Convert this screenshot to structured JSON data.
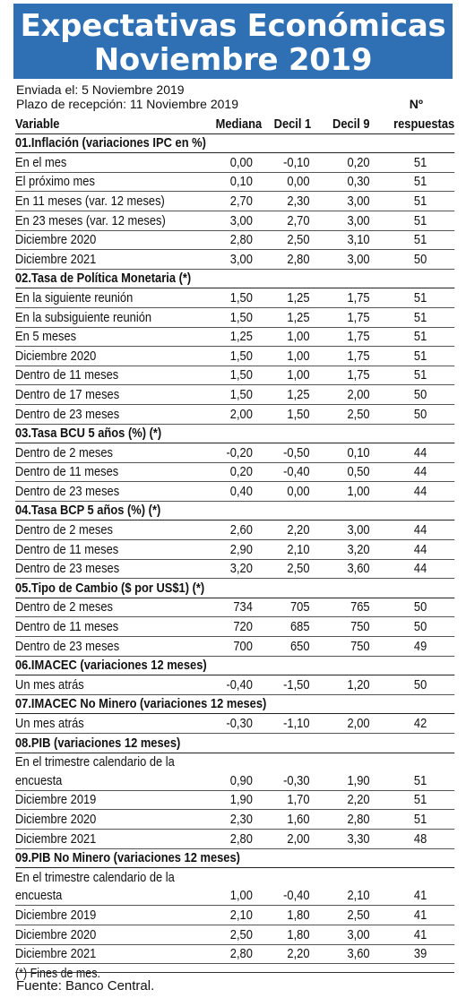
{
  "title_line1": "Expectativas Económicas",
  "title_line2": "Noviembre 2019",
  "sent": "Enviada el: 5 Noviembre 2019",
  "deadline": "Plazo de recepción: 11 Noviembre 2019",
  "columns": [
    "Variable",
    "Mediana",
    "Decil 1",
    "Decil 9",
    "respuestas"
  ],
  "n_label": "Nº",
  "rows": [
    {
      "t": "sec",
      "label": "01.Inflación (variaciones IPC en %)"
    },
    {
      "t": "item",
      "label": "En el mes",
      "v": [
        "0,00",
        "-0,10",
        "0,20",
        "51"
      ]
    },
    {
      "t": "item",
      "label": "El próximo mes",
      "v": [
        "0,10",
        "0,00",
        "0,30",
        "51"
      ]
    },
    {
      "t": "item",
      "label": "En 11 meses (var. 12 meses)",
      "v": [
        "2,70",
        "2,30",
        "3,00",
        "51"
      ]
    },
    {
      "t": "item",
      "label": "En 23 meses (var. 12 meses)",
      "v": [
        "3,00",
        "2,70",
        "3,00",
        "51"
      ]
    },
    {
      "t": "item",
      "label": "Diciembre 2020",
      "v": [
        "2,80",
        "2,50",
        "3,10",
        "51"
      ]
    },
    {
      "t": "item",
      "label": "Diciembre 2021",
      "v": [
        "3,00",
        "2,80",
        "3,00",
        "50"
      ]
    },
    {
      "t": "sec",
      "label": "02.Tasa de Política Monetaria  (*)"
    },
    {
      "t": "item",
      "label": "En la siguiente reunión",
      "v": [
        "1,50",
        "1,25",
        "1,75",
        "51"
      ]
    },
    {
      "t": "item",
      "label": "En la subsiguiente reunión",
      "v": [
        "1,50",
        "1,25",
        "1,75",
        "51"
      ]
    },
    {
      "t": "item",
      "label": "En 5 meses",
      "v": [
        "1,25",
        "1,00",
        "1,75",
        "51"
      ]
    },
    {
      "t": "item",
      "label": "Diciembre 2020",
      "v": [
        "1,50",
        "1,00",
        "1,75",
        "51"
      ]
    },
    {
      "t": "item",
      "label": "Dentro de 11 meses",
      "v": [
        "1,50",
        "1,00",
        "1,75",
        "51"
      ]
    },
    {
      "t": "item",
      "label": "Dentro de 17 meses",
      "v": [
        "1,50",
        "1,25",
        "2,00",
        "50"
      ]
    },
    {
      "t": "item",
      "label": "Dentro de 23 meses",
      "v": [
        "2,00",
        "1,50",
        "2,50",
        "50"
      ]
    },
    {
      "t": "sec",
      "label": "03.Tasa BCU 5 años  (%)  (*)"
    },
    {
      "t": "item",
      "label": "Dentro de 2 meses",
      "v": [
        "-0,20",
        "-0,50",
        "0,10",
        "44"
      ]
    },
    {
      "t": "item",
      "label": "Dentro de 11 meses",
      "v": [
        "0,20",
        "-0,40",
        "0,50",
        "44"
      ]
    },
    {
      "t": "item",
      "label": "Dentro de 23 meses",
      "v": [
        "0,40",
        "0,00",
        "1,00",
        "44"
      ]
    },
    {
      "t": "sec",
      "label": "04.Tasa BCP 5 años  (%) (*)"
    },
    {
      "t": "item",
      "label": "Dentro de 2 meses",
      "v": [
        "2,60",
        "2,20",
        "3,00",
        "44"
      ]
    },
    {
      "t": "item",
      "label": "Dentro de 11 meses",
      "v": [
        "2,90",
        "2,10",
        "3,20",
        "44"
      ]
    },
    {
      "t": "item",
      "label": "Dentro de 23 meses",
      "v": [
        "3,20",
        "2,50",
        "3,60",
        "44"
      ]
    },
    {
      "t": "sec",
      "label": "05.Tipo de Cambio  ($ por US$1) (*)"
    },
    {
      "t": "item",
      "label": "Dentro de 2 meses",
      "v": [
        "734",
        "705",
        "765",
        "50"
      ]
    },
    {
      "t": "item",
      "label": "Dentro de 11 meses",
      "v": [
        "720",
        "685",
        "750",
        "50"
      ]
    },
    {
      "t": "item",
      "label": "Dentro de 23 meses",
      "v": [
        "700",
        "650",
        "750",
        "49"
      ]
    },
    {
      "t": "sec",
      "label": "06.IMACEC  (variaciones 12 meses)"
    },
    {
      "t": "item",
      "label": "Un mes atrás",
      "v": [
        "-0,40",
        "-1,50",
        "1,20",
        "50"
      ]
    },
    {
      "t": "sec",
      "label": "07.IMACEC No Minero (variaciones 12 meses)"
    },
    {
      "t": "item",
      "label": "Un mes atrás",
      "v": [
        "-0,30",
        "-1,10",
        "2,00",
        "42"
      ]
    },
    {
      "t": "sec",
      "label": "08.PIB  (variaciones 12 meses)"
    },
    {
      "t": "itemnb",
      "label": "En el trimestre calendario de la"
    },
    {
      "t": "item",
      "label": "encuesta",
      "v": [
        "0,90",
        "-0,30",
        "1,90",
        "51"
      ]
    },
    {
      "t": "item",
      "label": "Diciembre 2019",
      "v": [
        "1,90",
        "1,70",
        "2,20",
        "51"
      ]
    },
    {
      "t": "item",
      "label": "Diciembre 2020",
      "v": [
        "2,30",
        "1,60",
        "2,80",
        "51"
      ]
    },
    {
      "t": "item",
      "label": "Diciembre 2021",
      "v": [
        "2,80",
        "2,00",
        "3,30",
        "48"
      ]
    },
    {
      "t": "sec",
      "label": "09.PIB No Minero (variaciones 12 meses)"
    },
    {
      "t": "itemnb",
      "label": "En el trimestre calendario de la"
    },
    {
      "t": "item",
      "label": "encuesta",
      "v": [
        "1,00",
        "-0,40",
        "2,10",
        "41"
      ]
    },
    {
      "t": "item",
      "label": "Diciembre 2019",
      "v": [
        "2,10",
        "1,80",
        "2,50",
        "41"
      ]
    },
    {
      "t": "item",
      "label": "Diciembre 2020",
      "v": [
        "2,50",
        "1,80",
        "3,00",
        "41"
      ]
    },
    {
      "t": "item",
      "label": "Diciembre 2021",
      "v": [
        "2,80",
        "2,20",
        "3,60",
        "39"
      ]
    },
    {
      "t": "note",
      "label": "(*) Fines de mes."
    }
  ],
  "source": "Fuente: Banco Central."
}
